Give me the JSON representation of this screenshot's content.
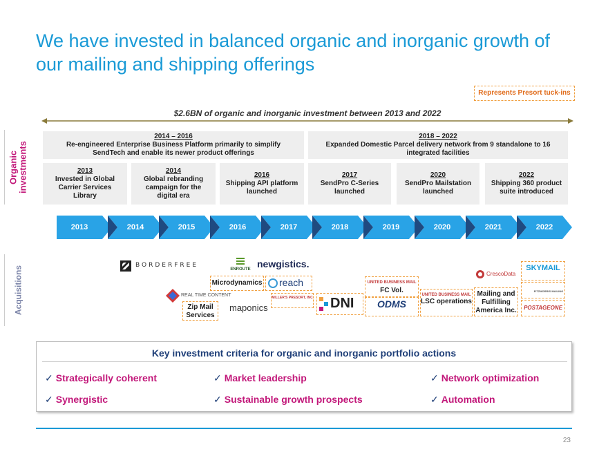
{
  "title": "We have invested in balanced organic and inorganic growth of our mailing and shipping offerings",
  "legend": "Represents Presort tuck-ins",
  "investment_span": "$2.6BN of organic and inorganic investment between 2013 and 2022",
  "side_labels": {
    "organic": "Organic investments",
    "acquisitions": "Acquisitions"
  },
  "organic_top": [
    {
      "years": "2014 – 2016",
      "text": "Re-engineered Enterprise Business Platform primarily to simplify SendTech and enable its newer product offerings"
    },
    {
      "years": "2018 – 2022",
      "text": "Expanded Domestic Parcel delivery network from 9 standalone to 16 integrated facilities"
    }
  ],
  "organic_items": [
    {
      "year": "2013",
      "text": "Invested in Global Carrier Services Library"
    },
    {
      "year": "2014",
      "text": "Global rebranding campaign for the digital era"
    },
    {
      "year": "2016",
      "text": "Shipping API platform launched"
    },
    {
      "year": "2017",
      "text": "SendPro C-Series launched"
    },
    {
      "year": "2020",
      "text": "SendPro Mailstation launched"
    },
    {
      "year": "2022",
      "text": "Shipping 360 product suite introduced"
    }
  ],
  "timeline_years": [
    "2013",
    "2014",
    "2015",
    "2016",
    "2017",
    "2018",
    "2019",
    "2020",
    "2021",
    "2022"
  ],
  "acquisitions": {
    "borderfree": "BORDERFREE",
    "enroute": "ENROUTE",
    "newgistics": "newgistics.",
    "microdynamics": "Microdynamics",
    "reach": "reach",
    "realtimecontent": "REAL TIME CONTENT",
    "zipmail": "Zip Mail Services",
    "maponics": "maponics",
    "millers": "MILLER'S PRESORT, INC",
    "dni": "DNI",
    "ubm1": "UNITED BUSINESS MAIL",
    "fcvol": "FC Vol.",
    "odms": "ODMS",
    "ubm2": "UNITED BUSINESS MAIL",
    "lsc": "LSC operations",
    "cresco": "CrescoData",
    "mfa": "Mailing and Fulfilling America Inc.",
    "skymail": "SKYMAIL",
    "fitzmorris": "FITZMORRIS MAILING",
    "postageone": "POSTAGEONE"
  },
  "criteria": {
    "title": "Key investment criteria for organic and inorganic portfolio actions",
    "items": [
      "Strategically coherent",
      "Market leadership",
      "Network optimization",
      "Synergistic",
      "Sustainable growth prospects",
      "Automation"
    ]
  },
  "page_number": "23",
  "colors": {
    "accent": "#1a9ad6",
    "magenta": "#c2187a",
    "navy": "#1f3f78",
    "orange": "#f0a040"
  }
}
